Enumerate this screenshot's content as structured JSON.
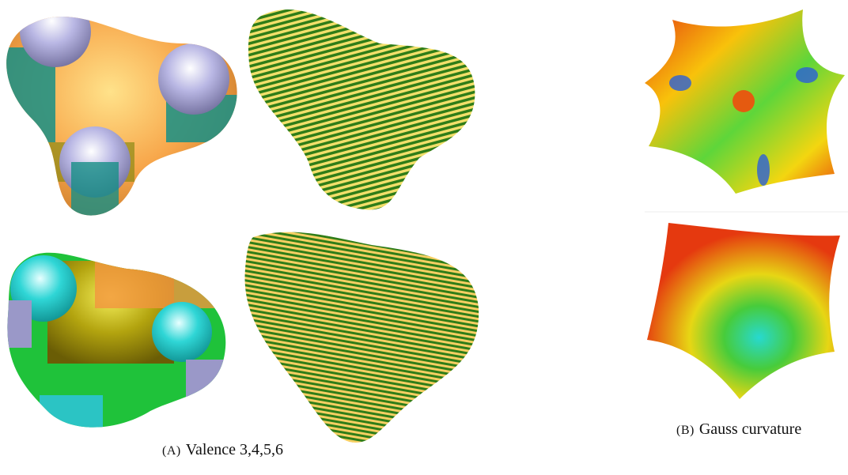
{
  "figure": {
    "subfigures": [
      {
        "label": "(A)",
        "caption": "Valence 3,4,5,6"
      },
      {
        "label": "(B)",
        "caption": "Gauss curvature"
      }
    ]
  }
}
